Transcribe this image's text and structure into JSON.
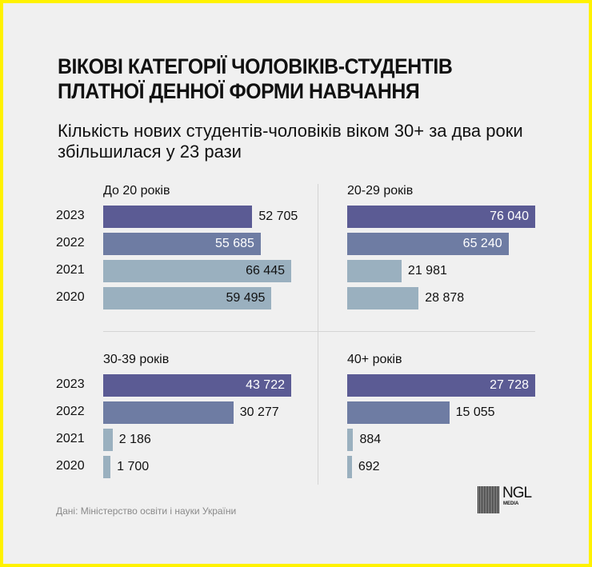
{
  "title": "ВІКОВІ КАТЕГОРІЇ ЧОЛОВІКІВ-СТУДЕНТІВ ПЛАТНОЇ ДЕННОЇ ФОРМИ НАВЧАННЯ",
  "subtitle": "Кількість нових студентів-чоловіків віком 30+ за два роки збільшилася у 23 рази",
  "source": "Дані: Міністерство освіти і науки України",
  "logo": {
    "text": "NGL",
    "sub": "MEDIA"
  },
  "colors": {
    "2023": "#5b5b94",
    "2022": "#6e7ca3",
    "2021": "#9ab0bf",
    "2020": "#9ab0bf",
    "frame": "#fff200",
    "background": "#f0f0f0"
  },
  "chart_data": [
    {
      "type": "bar",
      "title": "До 20 років",
      "categories": [
        "2023",
        "2022",
        "2021",
        "2020"
      ],
      "values": [
        52705,
        55685,
        66445,
        59495
      ],
      "labels": [
        "52 705",
        "55 685",
        "66 445",
        "59 495"
      ]
    },
    {
      "type": "bar",
      "title": "20-29 років",
      "categories": [
        "2023",
        "2022",
        "2021",
        "2020"
      ],
      "values": [
        76040,
        65240,
        21981,
        28878
      ],
      "labels": [
        "76 040",
        "65 240",
        "21 981",
        "28 878"
      ]
    },
    {
      "type": "bar",
      "title": "30-39 років",
      "categories": [
        "2023",
        "2022",
        "2021",
        "2020"
      ],
      "values": [
        43722,
        30277,
        2186,
        1700
      ],
      "labels": [
        "43 722",
        "30 277",
        "2 186",
        "1 700"
      ]
    },
    {
      "type": "bar",
      "title": "40+ років",
      "categories": [
        "2023",
        "2022",
        "2021",
        "2020"
      ],
      "values": [
        27728,
        15055,
        884,
        692
      ],
      "labels": [
        "27 728",
        "15 055",
        "884",
        "692"
      ]
    }
  ]
}
